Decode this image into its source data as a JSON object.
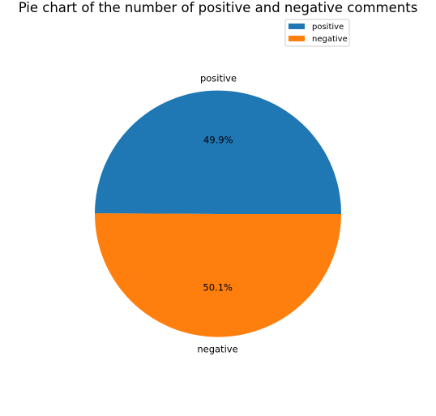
{
  "chart_data": {
    "type": "pie",
    "title": "Pie chart of the number of positive and negative comments",
    "categories": [
      "positive",
      "negative"
    ],
    "values": [
      49.9,
      50.1
    ],
    "value_labels": [
      "49.9%",
      "50.1%"
    ],
    "colors": [
      "#1f77b4",
      "#ff7f0e"
    ],
    "legend": {
      "placement": "top-right",
      "entries": [
        "positive",
        "negative"
      ]
    }
  }
}
